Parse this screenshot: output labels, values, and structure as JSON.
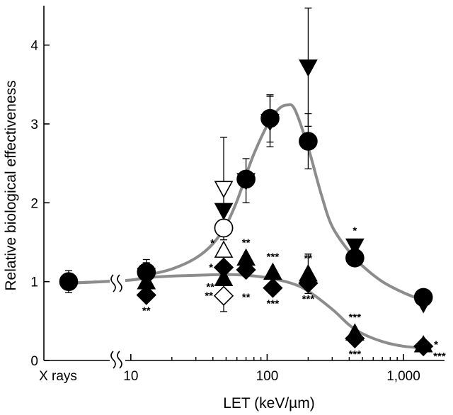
{
  "chart_data": {
    "type": "scatter",
    "title": "",
    "xlabel": "LET (keV/µm)",
    "ylabel": "Relative biological effectiveness",
    "xscale": "log",
    "xlim": [
      7,
      2000
    ],
    "ylim": [
      0,
      4.5
    ],
    "y_ticks": [
      0,
      1,
      2,
      3,
      4
    ],
    "y_tick_labels": [
      "0",
      "1",
      "2",
      "3",
      "4"
    ],
    "x_ticks": [
      10,
      100,
      1000
    ],
    "x_tick_labels": [
      "10",
      "100",
      "1,000"
    ],
    "x_minor_ticks": [
      20,
      30,
      40,
      50,
      60,
      70,
      80,
      90,
      200,
      300,
      400,
      500,
      600,
      700,
      800,
      900
    ],
    "xray_label": "X rays",
    "xray_point": {
      "y": 1.0,
      "err": 0.14
    },
    "axis_break": true,
    "grid": false,
    "legend": "none",
    "series": [
      {
        "marker": "filled-circle",
        "fill": "#000000",
        "points": [
          {
            "x": 13,
            "y": 1.12,
            "err": 0.12
          },
          {
            "x": 48,
            "y": 1.68,
            "err": 0.0
          },
          {
            "x": 70,
            "y": 2.3,
            "err": 0.0
          },
          {
            "x": 105,
            "y": 3.07,
            "err": 0.3
          },
          {
            "x": 200,
            "y": 2.78,
            "err": 0.35
          },
          {
            "x": 440,
            "y": 1.3,
            "err": 0.0
          },
          {
            "x": 1400,
            "y": 0.8,
            "err": 0.1
          }
        ]
      },
      {
        "marker": "open-circle",
        "fill": "#ffffff",
        "points": [
          {
            "x": 48,
            "y": 1.68,
            "err": 0.0
          }
        ]
      },
      {
        "marker": "filled-triangle-down",
        "fill": "#000000",
        "points": [
          {
            "x": 13,
            "y": 1.08,
            "err": 0.2
          },
          {
            "x": 48,
            "y": 1.9,
            "err": 0.0
          },
          {
            "x": 70,
            "y": 2.28,
            "err": 0.28
          },
          {
            "x": 105,
            "y": 3.03,
            "err": 0.32
          },
          {
            "x": 200,
            "y": 3.72,
            "err": 0.75
          },
          {
            "x": 440,
            "y": 1.45,
            "err": 0.0
          },
          {
            "x": 1400,
            "y": 0.72,
            "err": 0.0
          }
        ]
      },
      {
        "marker": "open-triangle-down",
        "fill": "#ffffff",
        "points": [
          {
            "x": 48,
            "y": 2.18,
            "err": 0.65
          }
        ]
      },
      {
        "marker": "filled-triangle-up",
        "fill": "#000000",
        "points": [
          {
            "x": 13,
            "y": 1.0,
            "err": 0.0
          },
          {
            "x": 48,
            "y": 1.04,
            "err": 0.0
          },
          {
            "x": 70,
            "y": 1.3,
            "err": 0.0
          },
          {
            "x": 110,
            "y": 1.12,
            "err": 0.0
          },
          {
            "x": 200,
            "y": 1.1,
            "err": 0.25
          },
          {
            "x": 440,
            "y": 0.35,
            "err": 0.0
          },
          {
            "x": 1400,
            "y": 0.2,
            "err": 0.0
          }
        ]
      },
      {
        "marker": "open-triangle-up",
        "fill": "#ffffff",
        "points": [
          {
            "x": 48,
            "y": 1.4,
            "err": 0.0
          }
        ]
      },
      {
        "marker": "filled-diamond",
        "fill": "#000000",
        "points": [
          {
            "x": 13,
            "y": 0.83,
            "err": 0.0
          },
          {
            "x": 48,
            "y": 1.18,
            "err": 0.0
          },
          {
            "x": 70,
            "y": 1.15,
            "err": 0.0
          },
          {
            "x": 110,
            "y": 0.92,
            "err": 0.0
          },
          {
            "x": 200,
            "y": 0.98,
            "err": 0.0
          },
          {
            "x": 440,
            "y": 0.28,
            "err": 0.0
          },
          {
            "x": 1400,
            "y": 0.18,
            "err": 0.0
          }
        ]
      },
      {
        "marker": "open-diamond",
        "fill": "#ffffff",
        "points": [
          {
            "x": 48,
            "y": 0.82,
            "err": 0.2
          }
        ]
      }
    ],
    "fit_curves": [
      {
        "color": "#8c8c8c",
        "points": [
          [
            7,
            0.98
          ],
          [
            10,
            1.02
          ],
          [
            13,
            1.08
          ],
          [
            20,
            1.16
          ],
          [
            30,
            1.3
          ],
          [
            40,
            1.48
          ],
          [
            50,
            1.72
          ],
          [
            60,
            2.02
          ],
          [
            70,
            2.35
          ],
          [
            80,
            2.62
          ],
          [
            100,
            2.98
          ],
          [
            120,
            3.18
          ],
          [
            140,
            3.24
          ],
          [
            160,
            3.18
          ],
          [
            200,
            2.7
          ],
          [
            250,
            2.1
          ],
          [
            300,
            1.7
          ],
          [
            400,
            1.38
          ],
          [
            500,
            1.2
          ],
          [
            700,
            1.0
          ],
          [
            1000,
            0.86
          ],
          [
            1400,
            0.76
          ]
        ]
      },
      {
        "color": "#8c8c8c",
        "points": [
          [
            7,
            0.98
          ],
          [
            10,
            1.02
          ],
          [
            13,
            1.05
          ],
          [
            20,
            1.07
          ],
          [
            30,
            1.08
          ],
          [
            50,
            1.09
          ],
          [
            70,
            1.08
          ],
          [
            100,
            1.05
          ],
          [
            150,
            0.98
          ],
          [
            200,
            0.88
          ],
          [
            300,
            0.65
          ],
          [
            400,
            0.45
          ],
          [
            500,
            0.34
          ],
          [
            700,
            0.24
          ],
          [
            1000,
            0.18
          ],
          [
            1400,
            0.16
          ]
        ]
      }
    ],
    "annotations": [
      {
        "x": 13,
        "y": 0.83,
        "pos": "below",
        "text": "**"
      },
      {
        "x": 48,
        "y": 1.4,
        "pos": "upper-left",
        "text": "*"
      },
      {
        "x": 48,
        "y": 1.18,
        "pos": "left",
        "text": "*"
      },
      {
        "x": 48,
        "y": 1.04,
        "pos": "lower-left",
        "text": "**"
      },
      {
        "x": 48,
        "y": 0.82,
        "pos": "left",
        "text": "**"
      },
      {
        "x": 70,
        "y": 1.3,
        "pos": "above",
        "text": "**"
      },
      {
        "x": 70,
        "y": 1.0,
        "pos": "below",
        "text": "**"
      },
      {
        "x": 110,
        "y": 1.12,
        "pos": "above",
        "text": "***"
      },
      {
        "x": 110,
        "y": 0.92,
        "pos": "below",
        "text": "***"
      },
      {
        "x": 200,
        "y": 1.1,
        "pos": "above",
        "text": "**"
      },
      {
        "x": 200,
        "y": 0.98,
        "pos": "below",
        "text": "***"
      },
      {
        "x": 440,
        "y": 1.45,
        "pos": "above",
        "text": "*"
      },
      {
        "x": 440,
        "y": 0.35,
        "pos": "above",
        "text": "***"
      },
      {
        "x": 440,
        "y": 0.28,
        "pos": "below",
        "text": "***"
      },
      {
        "x": 1400,
        "y": 0.2,
        "pos": "right",
        "text": "*"
      },
      {
        "x": 1400,
        "y": 0.18,
        "pos": "lower-right",
        "text": "***"
      }
    ]
  }
}
